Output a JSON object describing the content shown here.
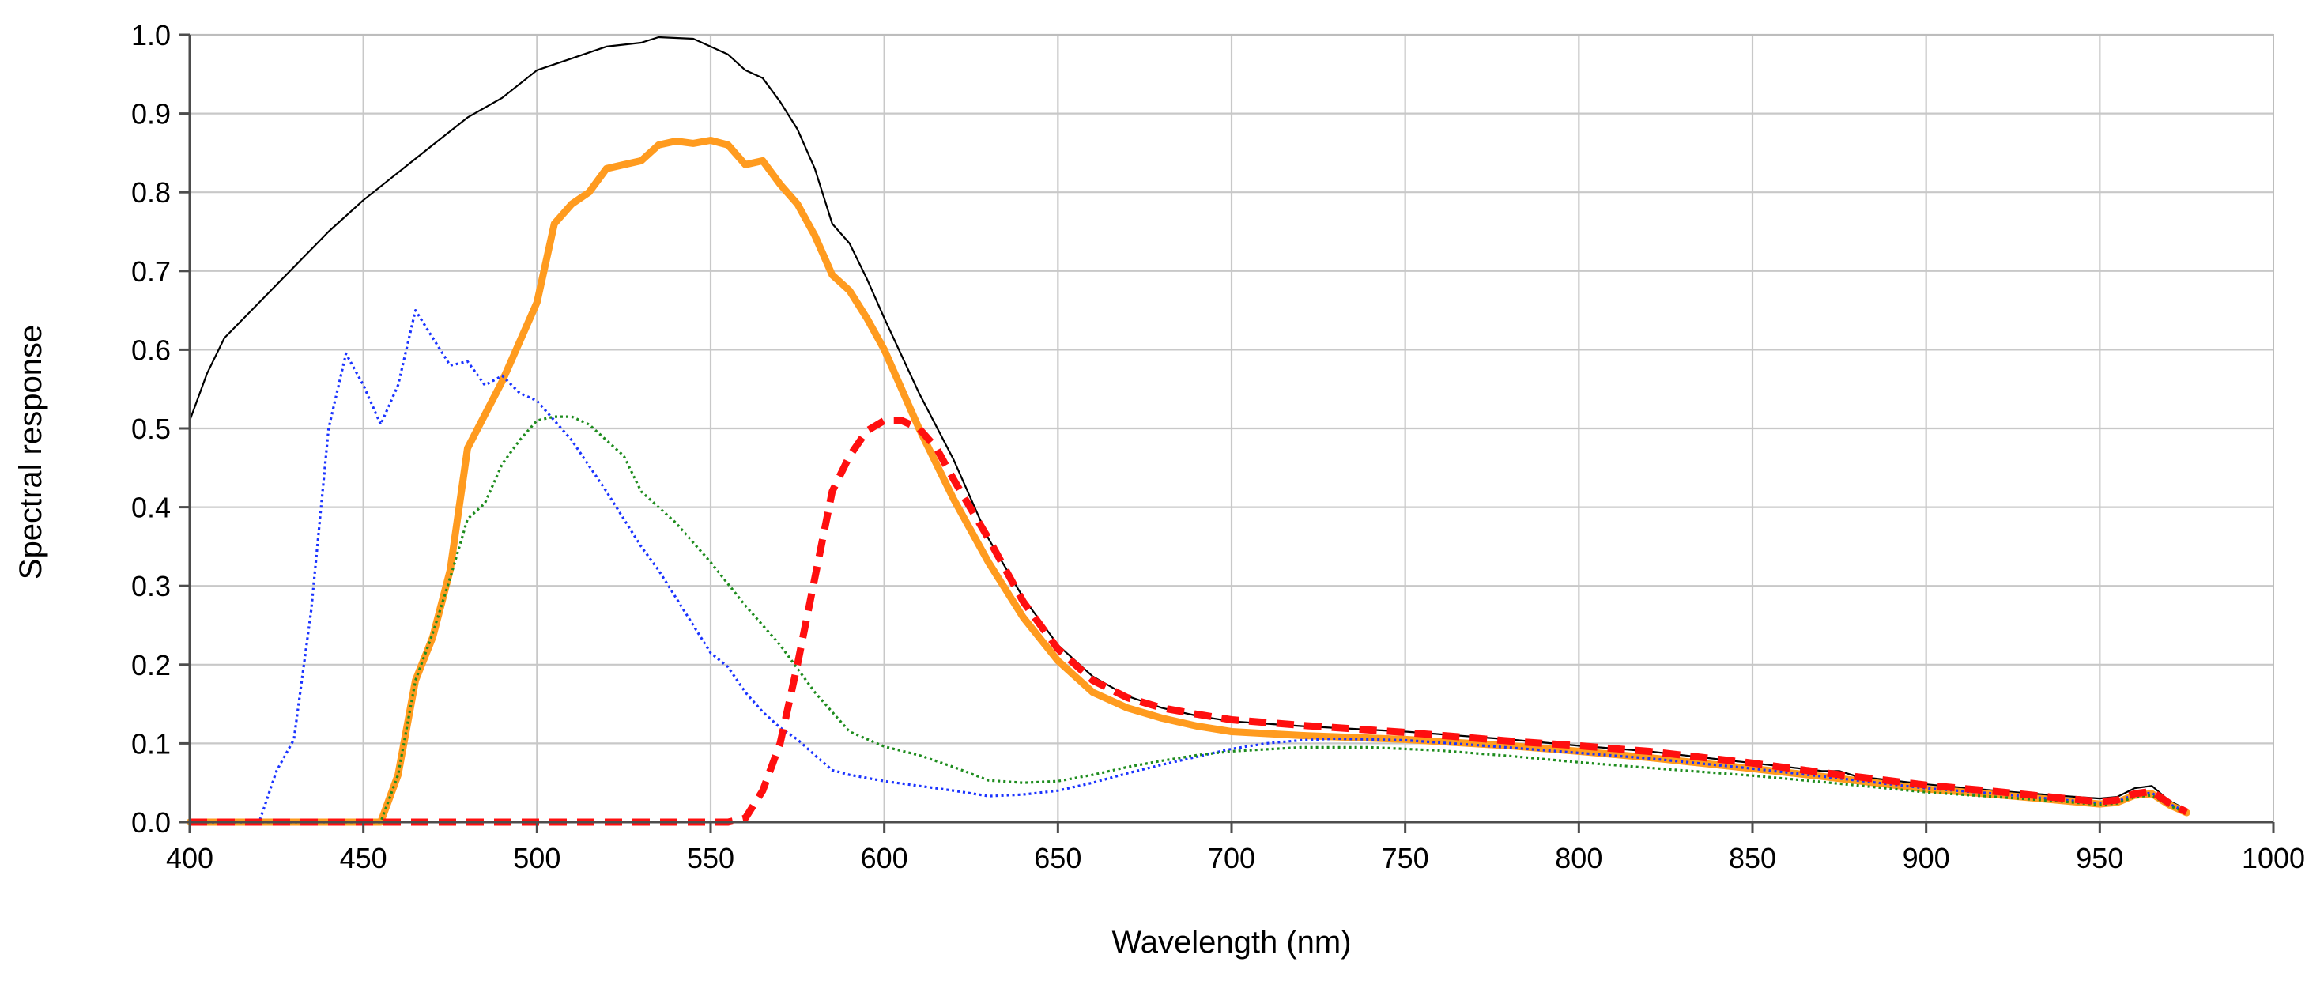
{
  "chart_data": {
    "type": "line",
    "title": "",
    "xlabel": "Wavelength (nm)",
    "ylabel": "Spectral response",
    "xlim": [
      400,
      1000
    ],
    "ylim": [
      0.0,
      1.0
    ],
    "grid": true,
    "legend": "none",
    "x_ticks": [
      400,
      450,
      500,
      550,
      600,
      650,
      700,
      750,
      800,
      850,
      900,
      950,
      1000
    ],
    "y_ticks": [
      0.0,
      0.1,
      0.2,
      0.3,
      0.4,
      0.5,
      0.6,
      0.7,
      0.8,
      0.9,
      1.0
    ],
    "x_tick_labels": [
      "400",
      "450",
      "500",
      "550",
      "600",
      "650",
      "700",
      "750",
      "800",
      "850",
      "900",
      "950",
      "1000"
    ],
    "y_tick_labels": [
      "0.0",
      "0.1",
      "0.2",
      "0.3",
      "0.4",
      "0.5",
      "0.6",
      "0.7",
      "0.8",
      "0.9",
      "1.0"
    ],
    "series": [
      {
        "name": "black-solid",
        "color": "#000000",
        "style": "solid-thin",
        "points": [
          [
            400,
            0.51
          ],
          [
            405,
            0.57
          ],
          [
            410,
            0.615
          ],
          [
            420,
            0.66
          ],
          [
            430,
            0.705
          ],
          [
            440,
            0.75
          ],
          [
            450,
            0.79
          ],
          [
            460,
            0.825
          ],
          [
            470,
            0.86
          ],
          [
            480,
            0.895
          ],
          [
            490,
            0.92
          ],
          [
            500,
            0.955
          ],
          [
            510,
            0.97
          ],
          [
            520,
            0.985
          ],
          [
            530,
            0.99
          ],
          [
            535,
            0.997
          ],
          [
            545,
            0.995
          ],
          [
            550,
            0.985
          ],
          [
            555,
            0.975
          ],
          [
            560,
            0.955
          ],
          [
            565,
            0.945
          ],
          [
            570,
            0.915
          ],
          [
            575,
            0.88
          ],
          [
            580,
            0.83
          ],
          [
            585,
            0.76
          ],
          [
            590,
            0.735
          ],
          [
            595,
            0.69
          ],
          [
            600,
            0.64
          ],
          [
            610,
            0.545
          ],
          [
            620,
            0.46
          ],
          [
            630,
            0.36
          ],
          [
            640,
            0.285
          ],
          [
            650,
            0.225
          ],
          [
            660,
            0.185
          ],
          [
            670,
            0.16
          ],
          [
            680,
            0.145
          ],
          [
            690,
            0.135
          ],
          [
            700,
            0.128
          ],
          [
            720,
            0.122
          ],
          [
            750,
            0.115
          ],
          [
            780,
            0.105
          ],
          [
            800,
            0.097
          ],
          [
            820,
            0.09
          ],
          [
            850,
            0.075
          ],
          [
            870,
            0.065
          ],
          [
            875,
            0.065
          ],
          [
            880,
            0.058
          ],
          [
            900,
            0.048
          ],
          [
            920,
            0.04
          ],
          [
            940,
            0.033
          ],
          [
            950,
            0.03
          ],
          [
            955,
            0.032
          ],
          [
            960,
            0.043
          ],
          [
            965,
            0.046
          ],
          [
            970,
            0.027
          ],
          [
            975,
            0.016
          ]
        ]
      },
      {
        "name": "orange-thick",
        "color": "#FF9B1F",
        "style": "solid-thick",
        "points": [
          [
            400,
            0.0
          ],
          [
            455,
            0.0
          ],
          [
            460,
            0.06
          ],
          [
            465,
            0.18
          ],
          [
            470,
            0.235
          ],
          [
            475,
            0.32
          ],
          [
            480,
            0.475
          ],
          [
            490,
            0.56
          ],
          [
            500,
            0.66
          ],
          [
            505,
            0.76
          ],
          [
            510,
            0.785
          ],
          [
            515,
            0.8
          ],
          [
            520,
            0.83
          ],
          [
            525,
            0.835
          ],
          [
            530,
            0.84
          ],
          [
            535,
            0.86
          ],
          [
            540,
            0.865
          ],
          [
            545,
            0.862
          ],
          [
            550,
            0.866
          ],
          [
            555,
            0.86
          ],
          [
            560,
            0.835
          ],
          [
            565,
            0.84
          ],
          [
            570,
            0.81
          ],
          [
            575,
            0.785
          ],
          [
            580,
            0.745
          ],
          [
            585,
            0.695
          ],
          [
            590,
            0.675
          ],
          [
            595,
            0.64
          ],
          [
            600,
            0.6
          ],
          [
            610,
            0.5
          ],
          [
            620,
            0.41
          ],
          [
            630,
            0.33
          ],
          [
            640,
            0.26
          ],
          [
            650,
            0.205
          ],
          [
            660,
            0.165
          ],
          [
            670,
            0.145
          ],
          [
            680,
            0.132
          ],
          [
            690,
            0.122
          ],
          [
            700,
            0.115
          ],
          [
            720,
            0.11
          ],
          [
            750,
            0.105
          ],
          [
            780,
            0.097
          ],
          [
            800,
            0.09
          ],
          [
            820,
            0.082
          ],
          [
            850,
            0.068
          ],
          [
            870,
            0.058
          ],
          [
            900,
            0.042
          ],
          [
            920,
            0.035
          ],
          [
            940,
            0.027
          ],
          [
            950,
            0.023
          ],
          [
            955,
            0.025
          ],
          [
            960,
            0.034
          ],
          [
            965,
            0.036
          ],
          [
            970,
            0.022
          ],
          [
            975,
            0.012
          ]
        ]
      },
      {
        "name": "blue-dotted",
        "color": "#1A33FF",
        "style": "dotted",
        "points": [
          [
            400,
            0.0
          ],
          [
            420,
            0.0
          ],
          [
            425,
            0.065
          ],
          [
            430,
            0.105
          ],
          [
            435,
            0.27
          ],
          [
            440,
            0.5
          ],
          [
            445,
            0.595
          ],
          [
            450,
            0.555
          ],
          [
            455,
            0.505
          ],
          [
            460,
            0.555
          ],
          [
            465,
            0.65
          ],
          [
            470,
            0.615
          ],
          [
            475,
            0.58
          ],
          [
            480,
            0.585
          ],
          [
            485,
            0.555
          ],
          [
            490,
            0.567
          ],
          [
            495,
            0.545
          ],
          [
            500,
            0.535
          ],
          [
            510,
            0.485
          ],
          [
            520,
            0.42
          ],
          [
            530,
            0.35
          ],
          [
            535,
            0.32
          ],
          [
            540,
            0.285
          ],
          [
            545,
            0.25
          ],
          [
            550,
            0.215
          ],
          [
            555,
            0.197
          ],
          [
            560,
            0.165
          ],
          [
            565,
            0.14
          ],
          [
            570,
            0.12
          ],
          [
            575,
            0.105
          ],
          [
            580,
            0.085
          ],
          [
            585,
            0.066
          ],
          [
            590,
            0.06
          ],
          [
            600,
            0.052
          ],
          [
            610,
            0.046
          ],
          [
            620,
            0.04
          ],
          [
            630,
            0.033
          ],
          [
            640,
            0.035
          ],
          [
            650,
            0.04
          ],
          [
            660,
            0.05
          ],
          [
            670,
            0.062
          ],
          [
            680,
            0.073
          ],
          [
            690,
            0.083
          ],
          [
            700,
            0.093
          ],
          [
            710,
            0.1
          ],
          [
            720,
            0.104
          ],
          [
            730,
            0.106
          ],
          [
            750,
            0.104
          ],
          [
            770,
            0.098
          ],
          [
            800,
            0.088
          ],
          [
            820,
            0.081
          ],
          [
            850,
            0.068
          ],
          [
            870,
            0.058
          ],
          [
            900,
            0.043
          ],
          [
            920,
            0.036
          ],
          [
            940,
            0.028
          ],
          [
            950,
            0.024
          ],
          [
            955,
            0.026
          ],
          [
            960,
            0.035
          ],
          [
            965,
            0.037
          ],
          [
            970,
            0.023
          ],
          [
            975,
            0.013
          ]
        ]
      },
      {
        "name": "green-dotted",
        "color": "#1E8C1E",
        "style": "dotted",
        "points": [
          [
            400,
            0.0
          ],
          [
            455,
            0.0
          ],
          [
            460,
            0.06
          ],
          [
            465,
            0.18
          ],
          [
            470,
            0.24
          ],
          [
            475,
            0.31
          ],
          [
            480,
            0.385
          ],
          [
            485,
            0.405
          ],
          [
            490,
            0.455
          ],
          [
            495,
            0.485
          ],
          [
            500,
            0.51
          ],
          [
            505,
            0.515
          ],
          [
            510,
            0.515
          ],
          [
            515,
            0.505
          ],
          [
            520,
            0.485
          ],
          [
            525,
            0.465
          ],
          [
            530,
            0.42
          ],
          [
            535,
            0.4
          ],
          [
            540,
            0.38
          ],
          [
            545,
            0.355
          ],
          [
            550,
            0.33
          ],
          [
            560,
            0.275
          ],
          [
            570,
            0.225
          ],
          [
            580,
            0.165
          ],
          [
            590,
            0.115
          ],
          [
            600,
            0.096
          ],
          [
            610,
            0.085
          ],
          [
            620,
            0.07
          ],
          [
            630,
            0.053
          ],
          [
            640,
            0.05
          ],
          [
            650,
            0.052
          ],
          [
            660,
            0.06
          ],
          [
            670,
            0.07
          ],
          [
            680,
            0.078
          ],
          [
            690,
            0.085
          ],
          [
            700,
            0.09
          ],
          [
            720,
            0.095
          ],
          [
            740,
            0.095
          ],
          [
            760,
            0.091
          ],
          [
            780,
            0.084
          ],
          [
            800,
            0.076
          ],
          [
            820,
            0.069
          ],
          [
            850,
            0.059
          ],
          [
            870,
            0.051
          ],
          [
            900,
            0.038
          ],
          [
            920,
            0.032
          ],
          [
            940,
            0.026
          ],
          [
            950,
            0.022
          ],
          [
            955,
            0.024
          ],
          [
            960,
            0.032
          ],
          [
            965,
            0.034
          ],
          [
            970,
            0.021
          ],
          [
            975,
            0.012
          ]
        ]
      },
      {
        "name": "red-dashed",
        "color": "#FF0F0F",
        "style": "dashed-thick",
        "points": [
          [
            400,
            0.0
          ],
          [
            555,
            0.0
          ],
          [
            560,
            0.005
          ],
          [
            565,
            0.04
          ],
          [
            570,
            0.1
          ],
          [
            575,
            0.2
          ],
          [
            580,
            0.31
          ],
          [
            585,
            0.42
          ],
          [
            590,
            0.465
          ],
          [
            595,
            0.497
          ],
          [
            600,
            0.51
          ],
          [
            605,
            0.51
          ],
          [
            610,
            0.5
          ],
          [
            615,
            0.475
          ],
          [
            620,
            0.435
          ],
          [
            630,
            0.36
          ],
          [
            640,
            0.28
          ],
          [
            650,
            0.22
          ],
          [
            660,
            0.18
          ],
          [
            670,
            0.158
          ],
          [
            680,
            0.145
          ],
          [
            690,
            0.137
          ],
          [
            700,
            0.13
          ],
          [
            720,
            0.123
          ],
          [
            750,
            0.114
          ],
          [
            780,
            0.103
          ],
          [
            800,
            0.097
          ],
          [
            820,
            0.09
          ],
          [
            850,
            0.075
          ],
          [
            870,
            0.063
          ],
          [
            900,
            0.047
          ],
          [
            920,
            0.039
          ],
          [
            940,
            0.03
          ],
          [
            950,
            0.026
          ],
          [
            955,
            0.028
          ],
          [
            960,
            0.036
          ],
          [
            965,
            0.039
          ],
          [
            970,
            0.024
          ],
          [
            975,
            0.013
          ]
        ]
      }
    ]
  }
}
